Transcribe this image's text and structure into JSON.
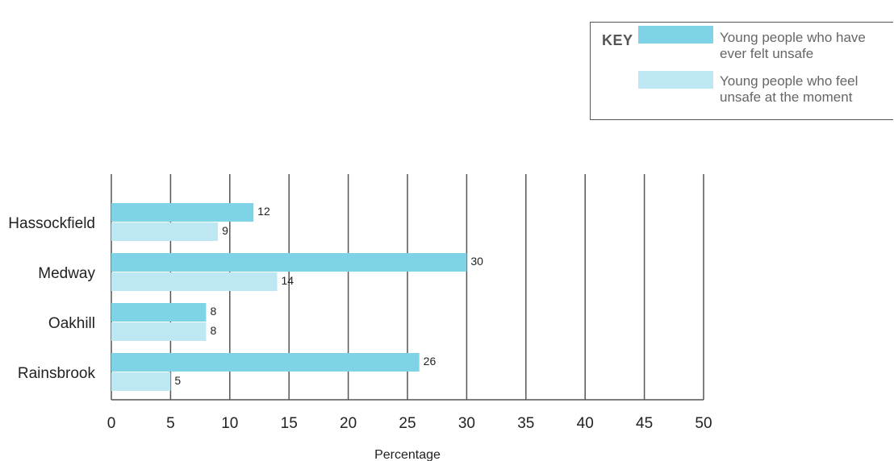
{
  "chart_data": {
    "type": "bar",
    "orientation": "horizontal",
    "categories": [
      "Hassockfield",
      "Medway",
      "Oakhill",
      "Rainsbrook"
    ],
    "series": [
      {
        "name": "Young people who have ever felt unsafe",
        "values": [
          12,
          30,
          8,
          26
        ],
        "color": "#7fd3e6"
      },
      {
        "name": "Young people who feel unsafe at the moment",
        "values": [
          9,
          14,
          8,
          5
        ],
        "color": "#bde8f3"
      }
    ],
    "xlabel": "Percentage",
    "ylabel": "",
    "xlim": [
      0,
      50
    ],
    "xticks": [
      0,
      5,
      10,
      15,
      20,
      25,
      30,
      35,
      40,
      45,
      50
    ],
    "grid": true,
    "legend": {
      "title": "KEY",
      "placement": "top-right"
    }
  },
  "colors": {
    "gridline": "#555555",
    "label_text": "#222222"
  }
}
